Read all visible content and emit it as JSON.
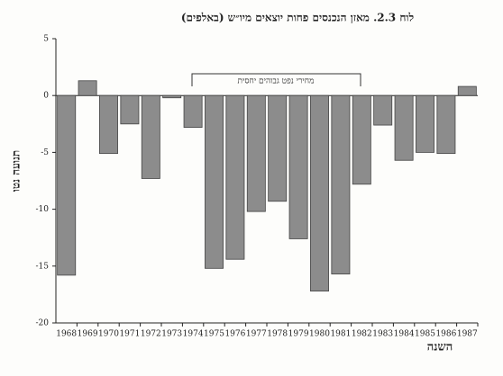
{
  "chart_data": {
    "type": "bar",
    "title": "לוח 2.3. מאזן הנכנסים פחות יוצאים מיו״ש (באלפים)",
    "y_label": "תנועה נטו",
    "x_label": "השנה",
    "annotation": "מחירי נפט גבוהים יחסית",
    "categories": [
      "1968",
      "1969",
      "1970",
      "1971",
      "1972",
      "1973",
      "1974",
      "1975",
      "1976",
      "1977",
      "1978",
      "1979",
      "1980",
      "1981",
      "1982",
      "1983",
      "1984",
      "1985",
      "1986",
      "1987"
    ],
    "values": [
      -15.8,
      1.3,
      -5.1,
      -2.5,
      -7.3,
      -0.2,
      -2.8,
      -15.2,
      -14.4,
      -10.2,
      -9.3,
      -12.6,
      -17.2,
      -15.7,
      -7.8,
      -2.6,
      -5.7,
      -5.0,
      -5.1,
      0.8
    ],
    "color": "#8c8c8c",
    "ylim": [
      -20,
      5
    ],
    "yticks": [
      5,
      0,
      -5,
      -10,
      -15,
      -20
    ]
  }
}
